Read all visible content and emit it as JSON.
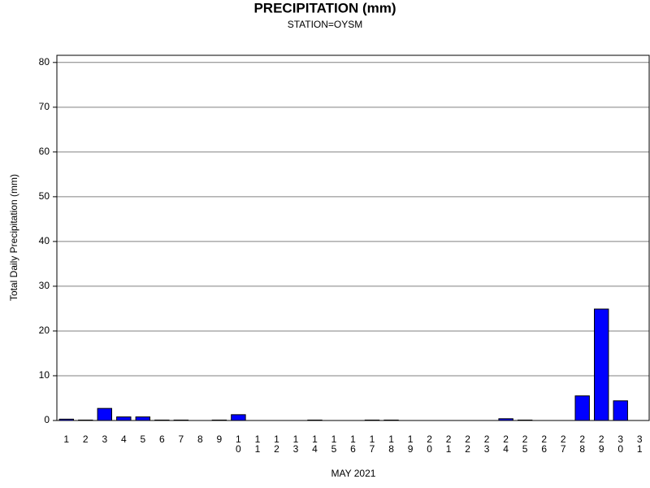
{
  "chart_data": {
    "type": "bar",
    "title": "PRECIPITATION (mm)",
    "subtitle": "STATION=OYSM",
    "x_label": "MAY 2021",
    "y_label": "Total Daily Precipitation (mm)",
    "categories": [
      "1",
      "2",
      "3",
      "4",
      "5",
      "6",
      "7",
      "8",
      "9",
      "10",
      "11",
      "12",
      "13",
      "14",
      "15",
      "16",
      "17",
      "18",
      "19",
      "20",
      "21",
      "22",
      "23",
      "24",
      "25",
      "26",
      "27",
      "28",
      "29",
      "30",
      "31"
    ],
    "values": [
      0.3,
      0.1,
      2.7,
      0.8,
      0.8,
      0.1,
      0.1,
      0,
      0.1,
      1.3,
      0,
      0,
      0,
      0.1,
      0,
      0,
      0.1,
      0.1,
      0,
      0,
      0,
      0,
      0,
      0.4,
      0.1,
      0,
      0,
      5.5,
      24.9,
      4.4,
      null
    ],
    "color": "#0000ff",
    "ylim": [
      0,
      81.6
    ],
    "yticks": [
      0,
      10,
      20,
      30,
      40,
      50,
      60,
      70,
      80
    ],
    "grid": true
  }
}
